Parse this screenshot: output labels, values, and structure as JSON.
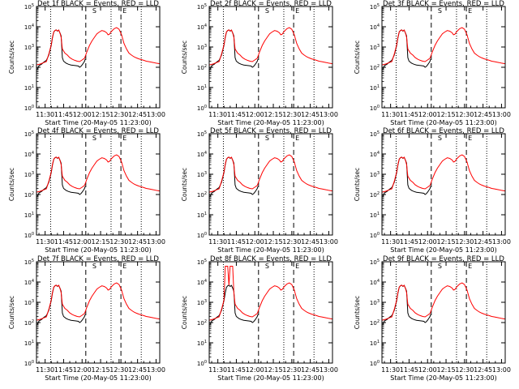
{
  "chart_data": [
    {
      "type": "line",
      "title": "Det 1f BLACK = Events, RED = LLD",
      "ylabel": "Counts/sec",
      "xlabel": "Start Time (20-May-05 11:23:00)"
    },
    {
      "type": "line",
      "title": "Det 2f BLACK = Events, RED = LLD",
      "ylabel": "Counts/sec",
      "xlabel": "Start Time (20-May-05 11:23:00)"
    },
    {
      "type": "line",
      "title": "Det 3f BLACK = Events, RED = LLD",
      "ylabel": "Counts/sec",
      "xlabel": "Start Time (20-May-05 11:23:00)"
    },
    {
      "type": "line",
      "title": "Det 4f BLACK = Events, RED = LLD",
      "ylabel": "Counts/sec",
      "xlabel": "Start Time (20-May-05 11:23:00)"
    },
    {
      "type": "line",
      "title": "Det 5f BLACK = Events, RED = LLD",
      "ylabel": "Counts/sec",
      "xlabel": "Start Time (20-May-05 11:23:00)"
    },
    {
      "type": "line",
      "title": "Det 6f BLACK = Events, RED = LLD",
      "ylabel": "Counts/sec",
      "xlabel": "Start Time (20-May-05 11:23:00)"
    },
    {
      "type": "line",
      "title": "Det 7f BLACK = Events, RED = LLD",
      "ylabel": "Counts/sec",
      "xlabel": "Start Time (20-May-05 11:23:00)"
    },
    {
      "type": "line",
      "title": "Det 8f BLACK = Events, RED = LLD",
      "ylabel": "Counts/sec",
      "xlabel": "Start Time (20-May-05 11:23:00)",
      "saturated": true
    },
    {
      "type": "line",
      "title": "Det 9f BLACK = Events, RED = LLD",
      "ylabel": "Counts/sec",
      "xlabel": "Start Time (20-May-05 11:23:00)"
    }
  ],
  "shared": {
    "x_ticks": [
      "11:30",
      "11:45",
      "12:00",
      "12:15",
      "12:30",
      "12:45",
      "13:00"
    ],
    "x_tick_minutes": [
      30,
      45,
      60,
      75,
      90,
      105,
      120
    ],
    "xlim_minutes": [
      23,
      123
    ],
    "ylim": [
      1,
      100000
    ],
    "y_scale": "log",
    "y_ticks": [
      1,
      10,
      100,
      1000,
      10000,
      100000
    ],
    "dotted_lines_minutes": [
      34.5,
      83.5,
      108
    ],
    "dashed_lines_minutes": [
      63,
      91.5
    ],
    "markers": [
      {
        "label": "S",
        "minute": 67
      },
      {
        "label": "E",
        "minute": 91.5
      }
    ],
    "series": [
      {
        "name": "Events",
        "color": "#000000",
        "points": [
          [
            24,
            80
          ],
          [
            25,
            120
          ],
          [
            27,
            140
          ],
          [
            29,
            180
          ],
          [
            31,
            220
          ],
          [
            33,
            400
          ],
          [
            35,
            1200
          ],
          [
            36,
            3000
          ],
          [
            37,
            5500
          ],
          [
            38,
            6500
          ],
          [
            39,
            7000
          ],
          [
            40,
            6000
          ],
          [
            41,
            6800
          ],
          [
            42,
            5000
          ],
          [
            43,
            3500
          ],
          [
            44,
            300
          ],
          [
            45,
            200
          ],
          [
            47,
            160
          ],
          [
            49,
            140
          ],
          [
            51,
            130
          ],
          [
            53,
            125
          ],
          [
            55,
            120
          ],
          [
            57,
            115
          ],
          [
            58,
            100
          ],
          [
            59,
            110
          ],
          [
            60,
            130
          ],
          [
            61,
            160
          ],
          [
            62,
            200
          ],
          [
            62.5,
            250
          ]
        ]
      },
      {
        "name": "LLD",
        "color": "#ff0000",
        "points": [
          [
            23,
            130
          ],
          [
            26,
            145
          ],
          [
            29,
            170
          ],
          [
            31,
            190
          ],
          [
            33,
            450
          ],
          [
            35,
            1300
          ],
          [
            36,
            3200
          ],
          [
            37,
            5600
          ],
          [
            38,
            6600
          ],
          [
            39,
            7000
          ],
          [
            40,
            6200
          ],
          [
            41,
            6900
          ],
          [
            42,
            5000
          ],
          [
            43,
            3000
          ],
          [
            44,
            800
          ],
          [
            46,
            500
          ],
          [
            48,
            400
          ],
          [
            50,
            300
          ],
          [
            52,
            250
          ],
          [
            54,
            220
          ],
          [
            56,
            200
          ],
          [
            58,
            190
          ],
          [
            60,
            230
          ],
          [
            62,
            280
          ],
          [
            64,
            600
          ],
          [
            66,
            1200
          ],
          [
            68,
            2000
          ],
          [
            70,
            3000
          ],
          [
            72,
            4500
          ],
          [
            74,
            5500
          ],
          [
            76,
            6500
          ],
          [
            78,
            6000
          ],
          [
            80,
            5000
          ],
          [
            81,
            4000
          ],
          [
            82,
            4200
          ],
          [
            84,
            6000
          ],
          [
            86,
            8000
          ],
          [
            88,
            9000
          ],
          [
            90,
            7500
          ],
          [
            92,
            4000
          ],
          [
            94,
            1500
          ],
          [
            96,
            800
          ],
          [
            98,
            500
          ],
          [
            100,
            400
          ],
          [
            102,
            330
          ],
          [
            104,
            290
          ],
          [
            106,
            260
          ],
          [
            108,
            240
          ],
          [
            110,
            220
          ],
          [
            112,
            200
          ],
          [
            114,
            190
          ],
          [
            116,
            180
          ],
          [
            118,
            170
          ],
          [
            120,
            160
          ],
          [
            123,
            150
          ]
        ]
      }
    ]
  }
}
